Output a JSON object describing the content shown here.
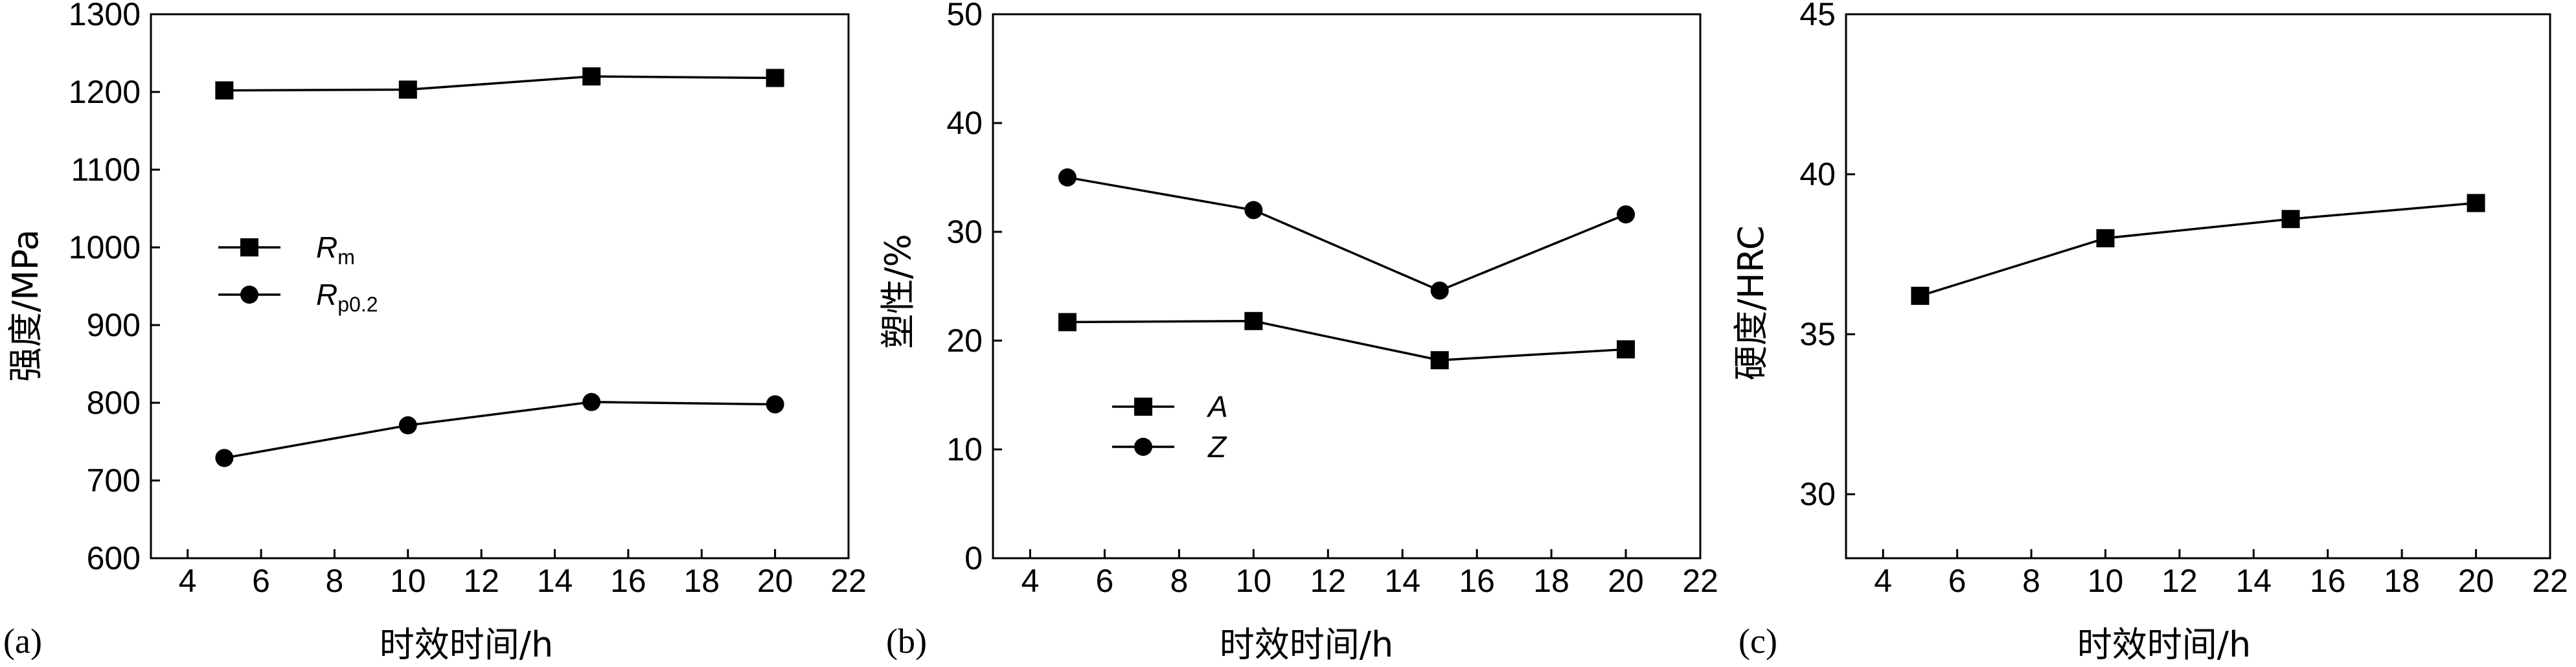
{
  "chart_data": [
    {
      "type": "line",
      "panel_label": "(a)",
      "xlabel": "时效时间/h",
      "ylabel": "强度/MPa",
      "xlim": [
        3,
        22
      ],
      "ylim": [
        600,
        1300
      ],
      "xticks": [
        4,
        6,
        8,
        10,
        12,
        14,
        16,
        18,
        20,
        22
      ],
      "yticks": [
        600,
        700,
        800,
        900,
        1000,
        1100,
        1200,
        1300
      ],
      "legend": {
        "placement": "center-left"
      },
      "series": [
        {
          "name": "R",
          "name_sub": "m",
          "marker": "square",
          "x": [
            5,
            10,
            15,
            20
          ],
          "y": [
            1202,
            1203,
            1220,
            1218
          ]
        },
        {
          "name": "R",
          "name_sub": "p0.2",
          "marker": "circle",
          "x": [
            5,
            10,
            15,
            20
          ],
          "y": [
            729,
            771,
            801,
            798
          ]
        }
      ]
    },
    {
      "type": "line",
      "panel_label": "(b)",
      "xlabel": "时效时间/h",
      "ylabel": "塑性/%",
      "xlim": [
        3,
        22
      ],
      "ylim": [
        0,
        50
      ],
      "xticks": [
        4,
        6,
        8,
        10,
        12,
        14,
        16,
        18,
        20,
        22
      ],
      "yticks": [
        0,
        10,
        20,
        30,
        40,
        50
      ],
      "legend": {
        "placement": "lower-left"
      },
      "series": [
        {
          "name": "A",
          "name_sub": "",
          "marker": "square",
          "x": [
            5,
            10,
            15,
            20
          ],
          "y": [
            21.7,
            21.8,
            18.2,
            19.2
          ]
        },
        {
          "name": "Z",
          "name_sub": "",
          "marker": "circle",
          "x": [
            5,
            10,
            15,
            20
          ],
          "y": [
            35.0,
            32.0,
            24.6,
            31.6
          ]
        }
      ]
    },
    {
      "type": "line",
      "panel_label": "(c)",
      "xlabel": "时效时间/h",
      "ylabel": "硬度/HRC",
      "xlim": [
        3,
        22
      ],
      "ylim": [
        28,
        45
      ],
      "xticks": [
        4,
        6,
        8,
        10,
        12,
        14,
        16,
        18,
        20,
        22
      ],
      "yticks": [
        30,
        35,
        40,
        45
      ],
      "series": [
        {
          "marker": "square",
          "x": [
            5,
            10,
            15,
            20
          ],
          "y": [
            36.2,
            38.0,
            38.6,
            39.1
          ]
        }
      ]
    }
  ]
}
